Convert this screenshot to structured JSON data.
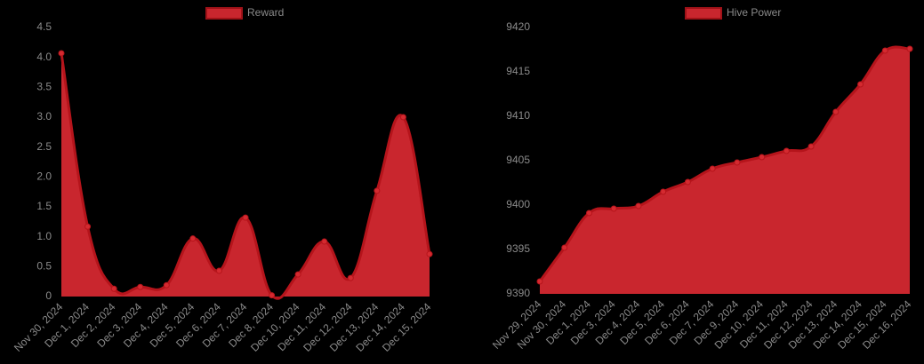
{
  "chart_data": [
    {
      "type": "area",
      "series": [
        {
          "name": "Reward",
          "color": "#c9262e",
          "values": [
            4.07,
            1.17,
            0.13,
            0.16,
            0.19,
            0.97,
            0.43,
            1.32,
            0.02,
            0.37,
            0.92,
            0.31,
            1.77,
            3.0,
            0.71
          ]
        }
      ],
      "categories": [
        "Nov 30, 2024",
        "Dec 1, 2024",
        "Dec 2, 2024",
        "Dec 3, 2024",
        "Dec 4, 2024",
        "Dec 5, 2024",
        "Dec 6, 2024",
        "Dec 7, 2024",
        "Dec 8, 2024",
        "Dec 10, 2024",
        "Dec 11, 2024",
        "Dec 12, 2024",
        "Dec 13, 2024",
        "Dec 14, 2024",
        "Dec 15, 2024"
      ],
      "ylim": [
        0,
        4.5
      ],
      "yticks": [
        0,
        0.5,
        {
          "value": 1,
          "label": "1.0"
        },
        1.5,
        {
          "value": 2,
          "label": "2.0"
        },
        2.5,
        {
          "value": 3,
          "label": "3.0"
        },
        3.5,
        {
          "value": 4,
          "label": "4.0"
        },
        4.5
      ]
    },
    {
      "type": "area",
      "series": [
        {
          "name": "Hive Power",
          "color": "#c9262e",
          "values": [
            9391.4,
            9395.2,
            9399.1,
            9399.6,
            9399.9,
            9401.5,
            9402.6,
            9404.1,
            9404.8,
            9405.4,
            9406.1,
            9406.6,
            9410.5,
            9413.6,
            9417.4,
            9417.6
          ]
        }
      ],
      "categories": [
        "Nov 29, 2024",
        "Nov 30, 2024",
        "Dec 1, 2024",
        "Dec 3, 2024",
        "Dec 4, 2024",
        "Dec 5, 2024",
        "Dec 6, 2024",
        "Dec 7, 2024",
        "Dec 9, 2024",
        "Dec 10, 2024",
        "Dec 11, 2024",
        "Dec 12, 2024",
        "Dec 13, 2024",
        "Dec 14, 2024",
        "Dec 15, 2024",
        "Dec 16, 2024"
      ],
      "ylim": [
        9390,
        9420
      ],
      "yticks": [
        9390,
        9395,
        9400,
        9405,
        9410,
        9415,
        9420
      ]
    }
  ]
}
